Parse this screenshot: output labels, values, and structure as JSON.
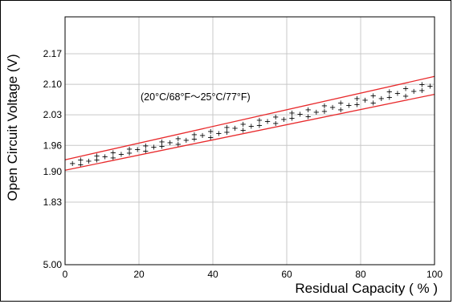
{
  "chart_data": {
    "type": "line",
    "title": "",
    "xlabel": "Residual Capacity ( % )",
    "ylabel": "Open Circuit Voltage (V)",
    "xlim": [
      0,
      100
    ],
    "x_ticks": [
      0,
      20,
      40,
      60,
      80,
      100
    ],
    "y_ticks": [
      "5.00",
      "1.83",
      "1.90",
      "1.96",
      "2.03",
      "2.10",
      "2.17"
    ],
    "y_break": "axis break between 5.00 at the bottom and 1.83",
    "grid": true,
    "annotation": "(20°C/68°F～25°C/77°F)",
    "series": [
      {
        "color": "#e8292b",
        "style": "solid",
        "x": [
          0,
          100
        ],
        "y": [
          1.927,
          2.118
        ]
      },
      {
        "color": "#e8292b",
        "style": "solid",
        "x": [
          0,
          100
        ],
        "y": [
          1.903,
          2.077
        ]
      }
    ],
    "band_markers": {
      "glyph": "+",
      "color": "#000000",
      "x_range": [
        0,
        100
      ],
      "note": "scatter of + marks filling the band between the two lines"
    }
  }
}
